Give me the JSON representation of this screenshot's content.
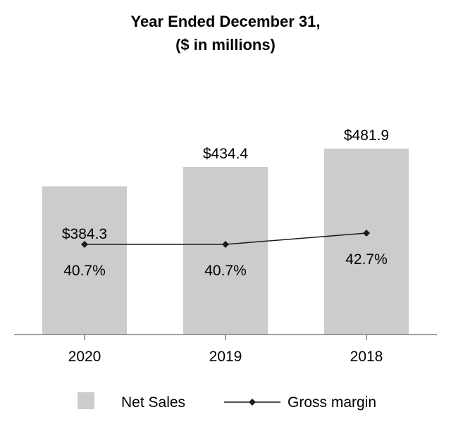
{
  "chart_data": {
    "type": "bar",
    "title": "Year Ended December 31,",
    "subtitle": "($ in millions)",
    "categories": [
      "2020",
      "2019",
      "2018"
    ],
    "series": [
      {
        "name": "Net Sales",
        "type": "bar",
        "values": [
          384.3,
          434.4,
          481.9
        ],
        "labels": [
          "$384.3",
          "$434.4",
          "$481.9"
        ]
      },
      {
        "name": "Gross margin",
        "type": "line",
        "values": [
          40.7,
          40.7,
          42.7
        ],
        "labels": [
          "40.7%",
          "40.7%",
          "42.7%"
        ]
      }
    ],
    "xlabel": "",
    "ylabel": "",
    "ylim": [
      0,
      550
    ],
    "margin_ylim": [
      0,
      108
    ],
    "grid": false,
    "legend_position": "bottom"
  },
  "colors": {
    "bar": "#cccccc",
    "line": "#1a1a1a",
    "axis": "#808080"
  }
}
